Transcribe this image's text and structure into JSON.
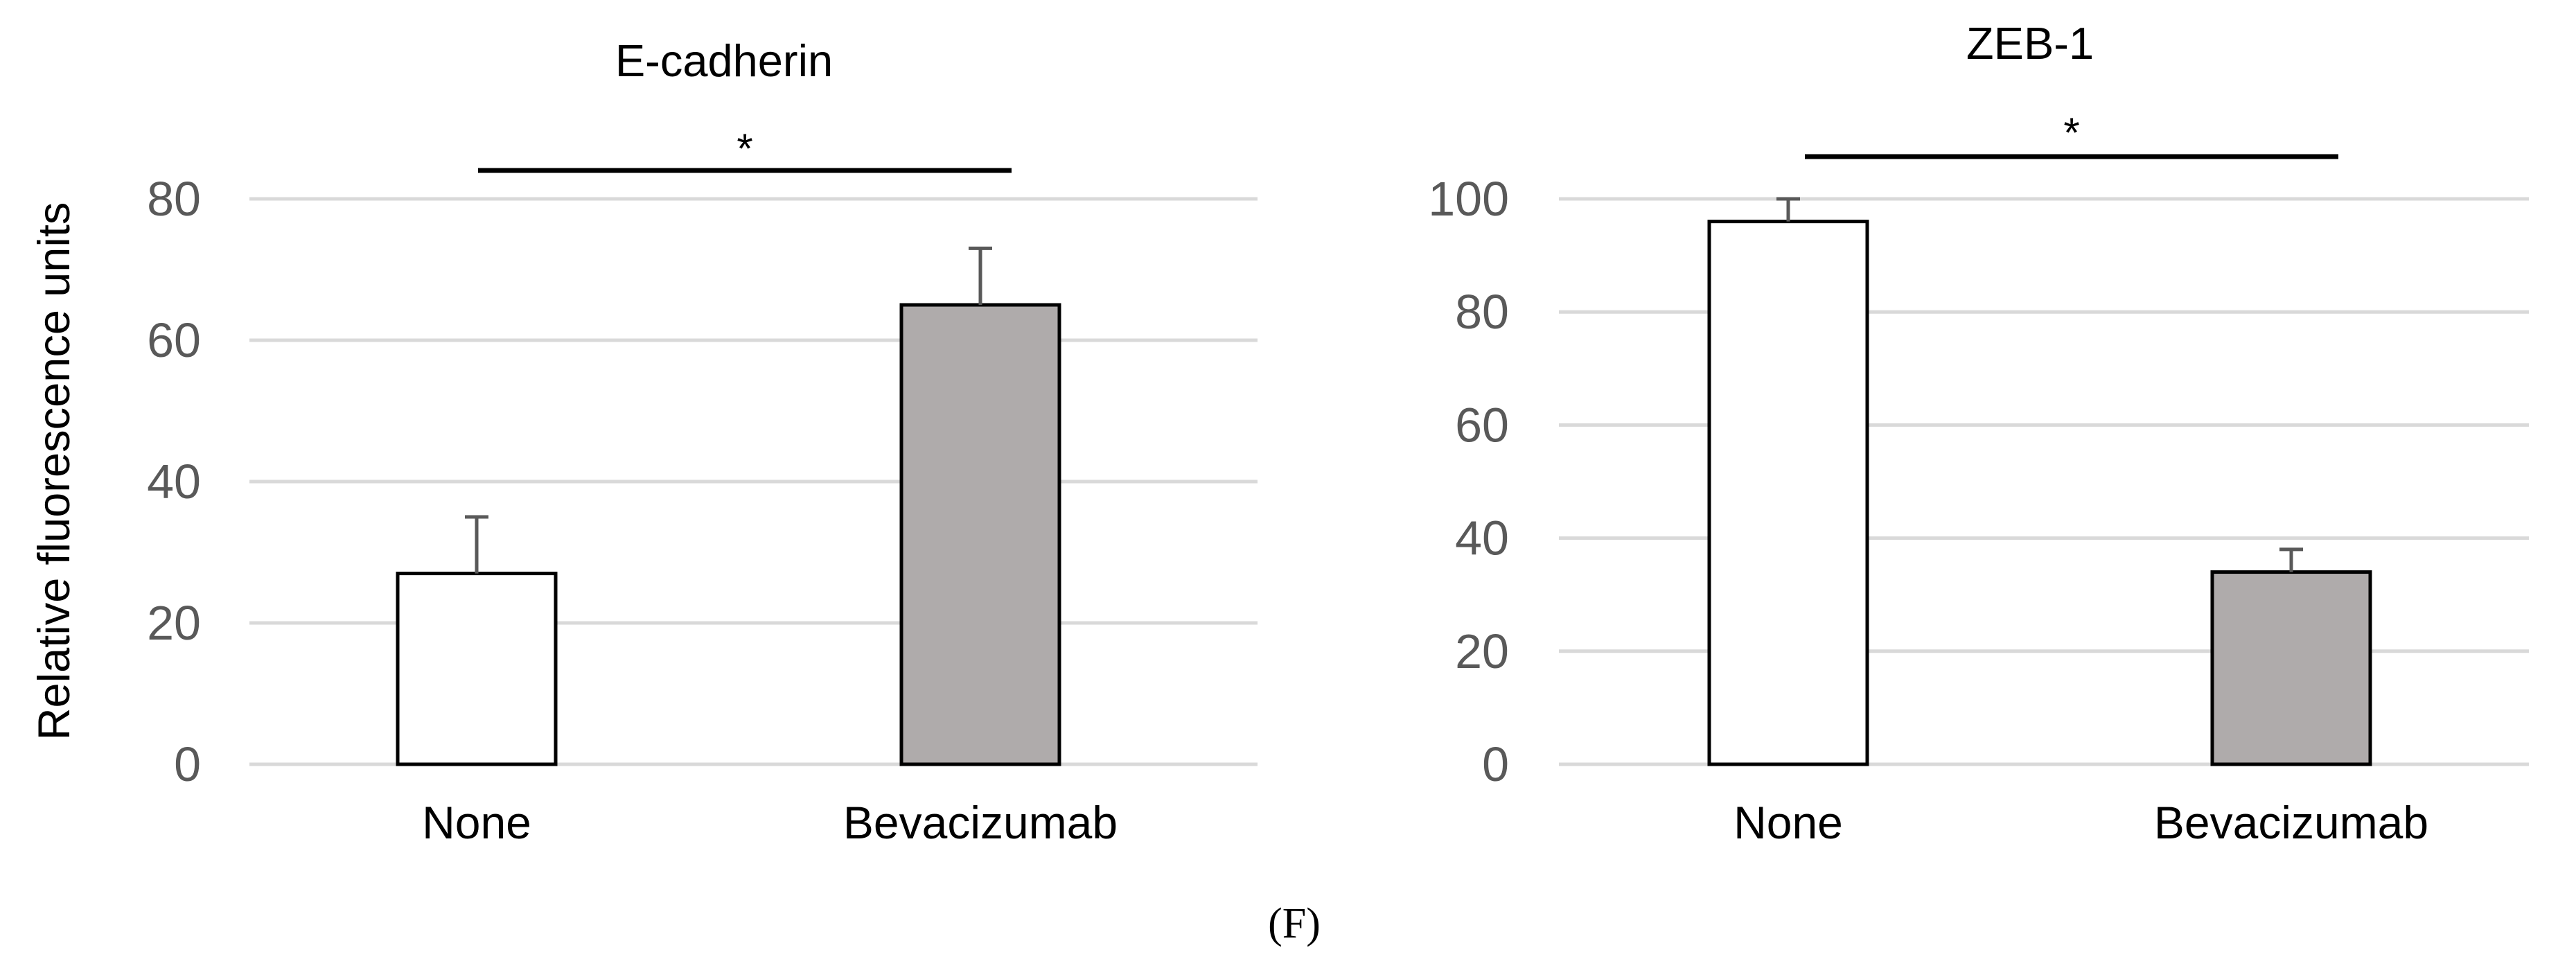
{
  "panel_label": "(F)",
  "chart_data": [
    {
      "type": "bar",
      "title": "E-cadherin",
      "ylabel": "Relative fluorescence units",
      "xlabel": "",
      "categories": [
        "None",
        "Bevacizumab"
      ],
      "values": [
        27,
        65
      ],
      "errors": [
        8,
        8
      ],
      "bar_colors": [
        "#ffffff",
        "#afabab"
      ],
      "ylim": [
        0,
        80
      ],
      "yticks": [
        0,
        20,
        40,
        60,
        80
      ],
      "grid": true,
      "significance": {
        "label": "*",
        "between": [
          "None",
          "Bevacizumab"
        ]
      }
    },
    {
      "type": "bar",
      "title": "ZEB-1",
      "ylabel": "",
      "xlabel": "",
      "categories": [
        "None",
        "Bevacizumab"
      ],
      "values": [
        96,
        34
      ],
      "errors": [
        4,
        4
      ],
      "bar_colors": [
        "#ffffff",
        "#afabab"
      ],
      "ylim": [
        0,
        100
      ],
      "yticks": [
        0,
        20,
        40,
        60,
        80,
        100
      ],
      "grid": true,
      "significance": {
        "label": "*",
        "between": [
          "None",
          "Bevacizumab"
        ]
      }
    }
  ]
}
